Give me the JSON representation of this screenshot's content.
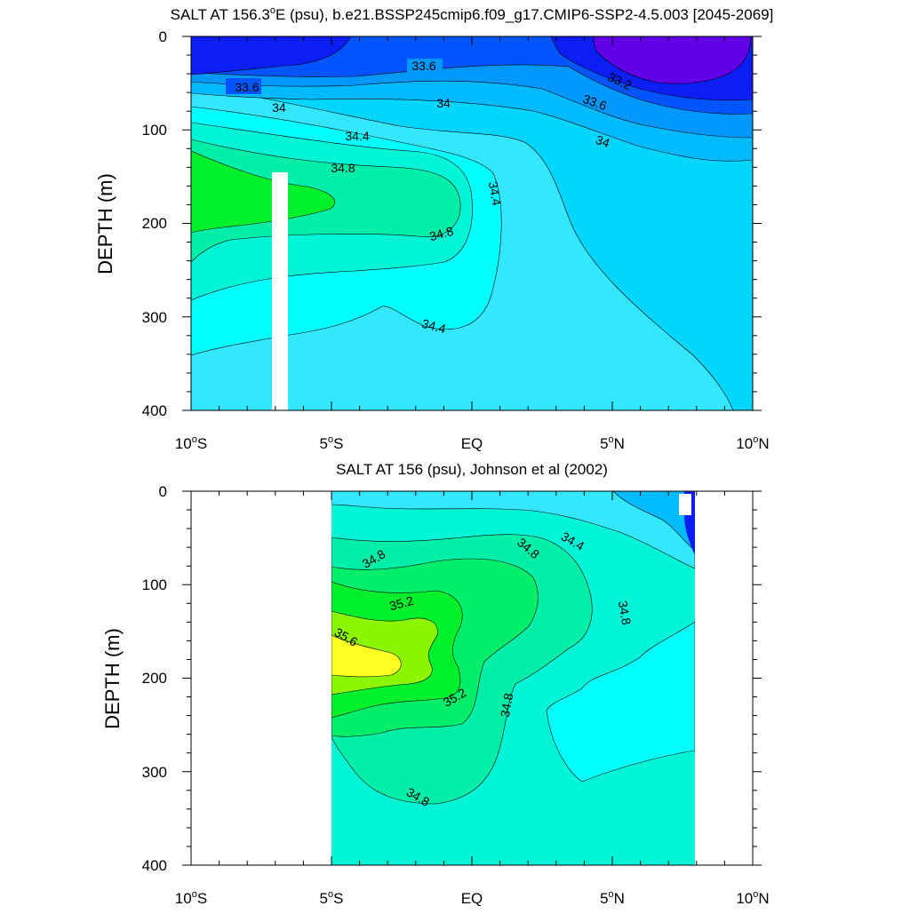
{
  "chart_data": [
    {
      "type": "contour",
      "title": "SALT AT 156.3°E (psu), b.e21.BSSP245cmip6.f09_g17.CMIP6-SSP2-4.5.003 [2045-2069]",
      "title_parts": [
        "SALT AT 156.3",
        "o",
        "E (psu), b.e21.BSSP245cmip6.f09_g17.CMIP6-SSP2-4.5.003 [2045-2069]"
      ],
      "ylabel": "DEPTH (m)",
      "xlim": [
        -10,
        10
      ],
      "ylim": [
        400,
        0
      ],
      "x_ticks": [
        {
          "num": "10",
          "deg": "o",
          "hemi": "S"
        },
        {
          "num": "5",
          "deg": "o",
          "hemi": "S"
        },
        {
          "num": "EQ",
          "deg": "",
          "hemi": ""
        },
        {
          "num": "5",
          "deg": "o",
          "hemi": "N"
        },
        {
          "num": "10",
          "deg": "o",
          "hemi": "N"
        }
      ],
      "y_ticks": [
        "0",
        "100",
        "200",
        "300",
        "400"
      ],
      "colors": {
        "le_33_2": "#6100E8",
        "33_2_33_4": "#0A1EF5",
        "33_4_33_6": "#0055FF",
        "33_6_33_8": "#0098FF",
        "33_8_34_0": "#00BAFF",
        "34_0_34_2": "#00D6FF",
        "34_2_34_4": "#33E7FF",
        "34_4_34_6": "#00FFFF",
        "34_6_34_8": "#00F5D6",
        "34_8_35_0": "#00EFA8",
        "35_0_35_2": "#00F02C"
      },
      "contour_labels": [
        "33.6",
        "33.6",
        "33.2",
        "33.6",
        "34",
        "34",
        "34",
        "34.4",
        "34.8",
        "34.4",
        "34.8",
        "34.4"
      ]
    },
    {
      "type": "contour",
      "title": "SALT AT 156 (psu), Johnson et al (2002)",
      "ylabel": "DEPTH (m)",
      "xlim": [
        -10,
        10
      ],
      "ylim": [
        400,
        0
      ],
      "data_extent_x": [
        -5,
        8
      ],
      "x_ticks": [
        {
          "num": "10",
          "deg": "o",
          "hemi": "S"
        },
        {
          "num": "5",
          "deg": "o",
          "hemi": "S"
        },
        {
          "num": "EQ",
          "deg": "",
          "hemi": ""
        },
        {
          "num": "5",
          "deg": "o",
          "hemi": "N"
        },
        {
          "num": "10",
          "deg": "o",
          "hemi": "N"
        }
      ],
      "y_ticks": [
        "0",
        "100",
        "200",
        "300",
        "400"
      ],
      "colors": {
        "34_0_34_2": "#00BCFF",
        "34_2_34_4": "#33E7FF",
        "34_4_34_6": "#00FFFF",
        "34_6_34_8": "#00F5D6",
        "34_8_35_0": "#00EFA8",
        "35_0_35_2": "#00EE6A",
        "35_2_35_4": "#00F02C",
        "35_4_35_6": "#8CF500",
        "ge_35_6": "#FFFF22",
        "fresh_core": "#0A1EF5"
      },
      "contour_labels": [
        "34.8",
        "34.8",
        "34.4",
        "35.2",
        "34.8",
        "35.6",
        "35.2",
        "34.8",
        "34.8"
      ]
    }
  ]
}
